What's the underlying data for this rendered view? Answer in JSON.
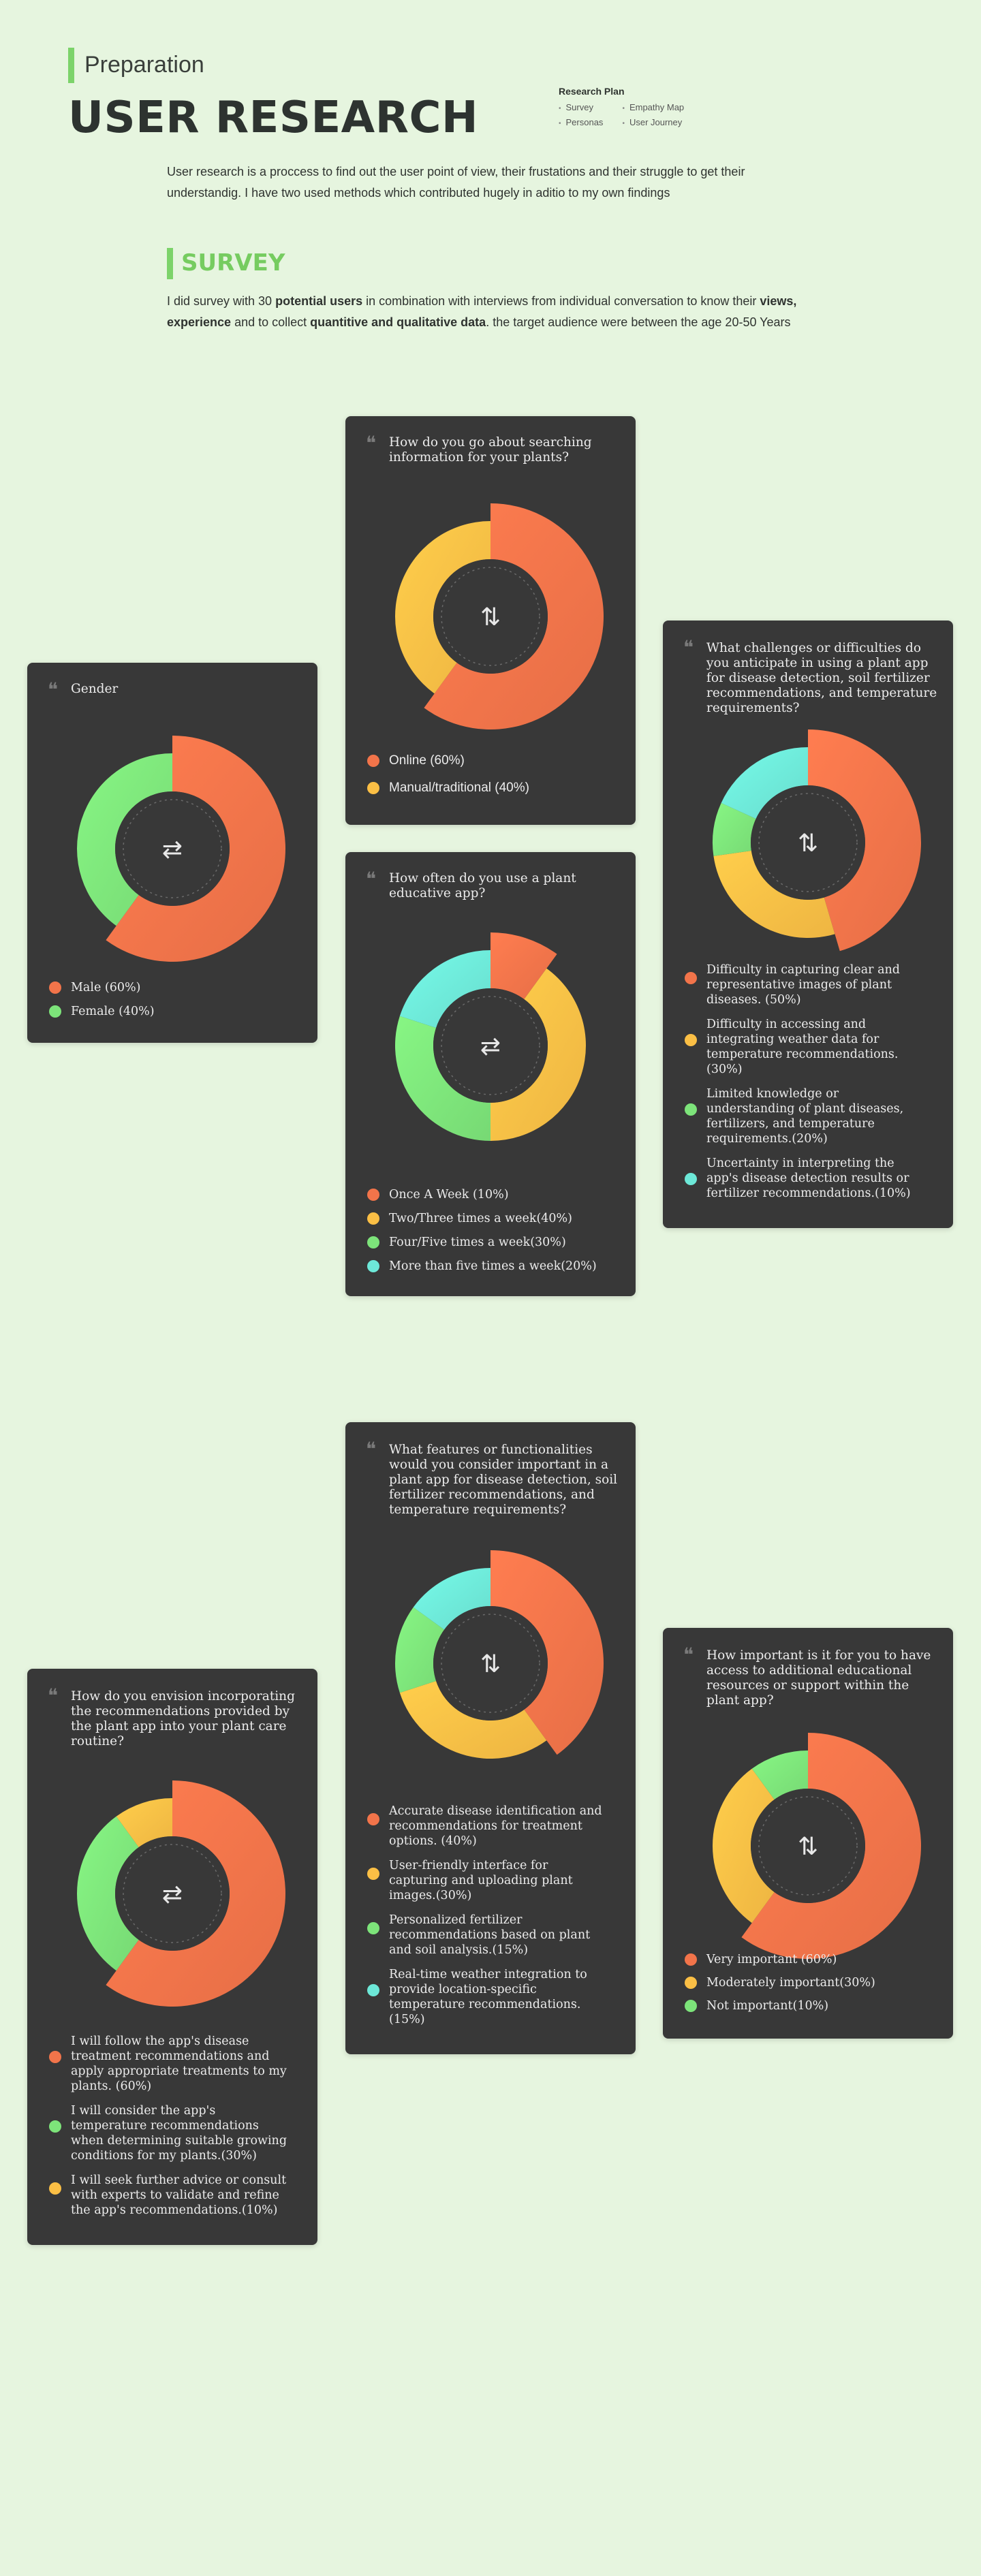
{
  "header": {
    "subtitle": "Preparation",
    "title": "USER RESEARCH",
    "plan_title": "Research Plan",
    "plan_col1": [
      "Survey",
      "Personas"
    ],
    "plan_col2": [
      "Empathy Map",
      "User Journey"
    ]
  },
  "intro": "User research is a proccess to find out the user point of view, their frustations and their struggle to get their understandig. I have two used methods which contributed hugely in aditio to my own findings",
  "survey": {
    "title": "SURVEY",
    "text_1": "I did survey with 30 ",
    "bold_1": "potential users",
    "text_2": " in combination with interviews from individual conversation to know their ",
    "bold_2": "views, experience",
    "text_3": " and to collect ",
    "bold_3": "quantitive and qualitative data",
    "text_4": ". the target audience were between the age 20-50 Years"
  },
  "colors": {
    "background": "#e6f5df",
    "accent": "#7cd36a",
    "card": "#383838",
    "orange": "#f2744a",
    "yellow": "#fbbf45",
    "green": "#7de47a",
    "cyan": "#6de8d8"
  },
  "icons": {
    "quote": "❝",
    "swap_horizontal": "⇄",
    "swap_vertical": "⇅"
  },
  "chart_data": [
    {
      "type": "pie",
      "title": "Gender",
      "categories": [
        "Male (60%)",
        "Female (40%)"
      ],
      "values": [
        60,
        40
      ]
    },
    {
      "type": "pie",
      "title": "How do you go about searching information for your plants?",
      "categories": [
        "Online (60%)",
        "Manual/traditional (40%)"
      ],
      "values": [
        60,
        40
      ]
    },
    {
      "type": "pie",
      "title": "How often do you use a plant educative app?",
      "categories": [
        "Once A Week (10%)",
        "Two/Three times a week(40%)",
        "Four/Five times a week(30%)",
        "More than five times a week(20%)"
      ],
      "values": [
        10,
        40,
        30,
        20
      ]
    },
    {
      "type": "pie",
      "title": "What challenges or difficulties do you anticipate in using a plant app for disease detection, soil fertilizer recommendations, and temperature requirements?",
      "categories": [
        "Difficulty in capturing clear and representative images of plant diseases. (50%)",
        "Difficulty in accessing and integrating weather data for temperature recommendations.(30%)",
        "Limited knowledge or understanding of plant diseases, fertilizers, and temperature requirements.(20%)",
        "Uncertainty in interpreting the app's disease detection results or fertilizer recommendations.(10%)"
      ],
      "values": [
        50,
        30,
        20,
        10
      ]
    },
    {
      "type": "pie",
      "title": "What features or functionalities would you consider important in a plant app for disease detection, soil fertilizer recommendations, and temperature requirements?",
      "categories": [
        "Accurate disease identification and recommendations for treatment options. (40%)",
        "User-friendly interface for capturing and uploading plant images.(30%)",
        "Personalized fertilizer recommendations based on plant and soil analysis.(15%)",
        "Real-time weather integration to provide location-specific temperature recommendations.(15%)"
      ],
      "values": [
        40,
        30,
        15,
        15
      ]
    },
    {
      "type": "pie",
      "title": "How do you envision incorporating the recommendations provided by the plant app into your plant care routine?",
      "categories": [
        "I will follow the app's disease treatment recommendations and apply appropriate treatments to my plants. (60%)",
        "I will consider the app's temperature recommendations when determining suitable growing conditions for my plants.(30%)",
        "I will seek further advice or consult with experts to validate and refine the app's recommendations.(10%)"
      ],
      "values": [
        60,
        30,
        10
      ]
    },
    {
      "type": "pie",
      "title": "How important is it for you to have access to additional educational resources or support within the plant app?",
      "categories": [
        "Very important (60%)",
        "Moderately important(30%)",
        "Not important(10%)"
      ],
      "values": [
        60,
        30,
        10
      ]
    }
  ]
}
